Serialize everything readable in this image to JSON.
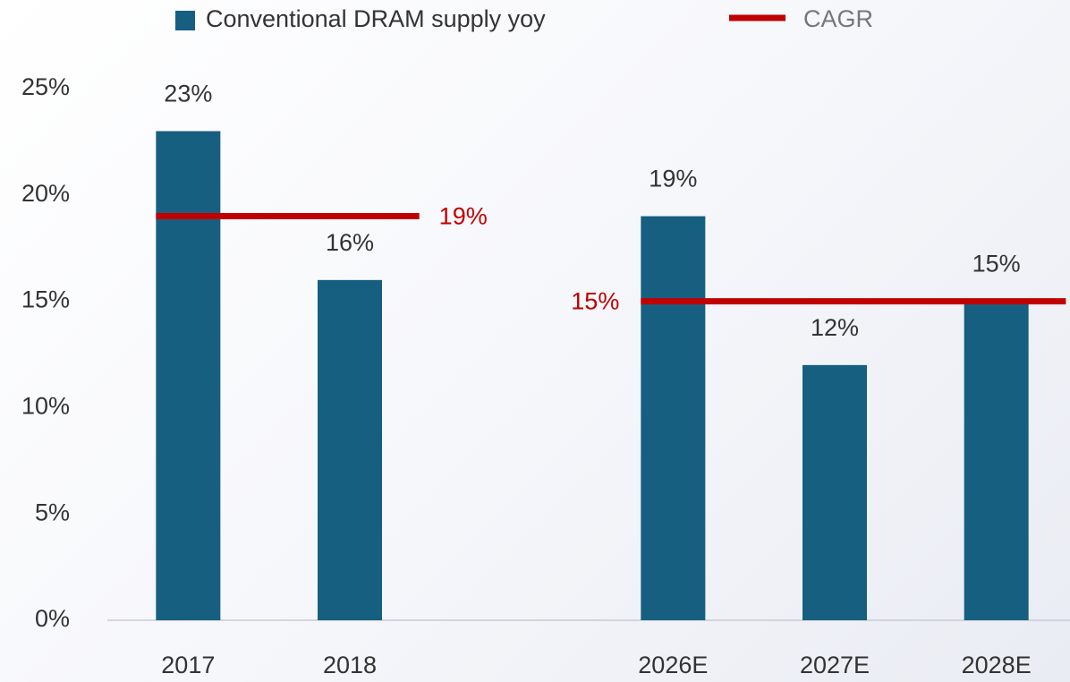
{
  "chart_data": {
    "type": "bar",
    "categories": [
      "2017",
      "2018",
      null,
      "2026E",
      "2027E",
      "2028E"
    ],
    "series": [
      {
        "name": "Conventional DRAM supply yoy",
        "type": "bar",
        "color": "#165f80",
        "values": [
          23,
          16,
          null,
          19,
          12,
          15
        ],
        "value_labels": [
          "23%",
          "16%",
          null,
          "19%",
          "12%",
          "15%"
        ]
      },
      {
        "name": "CAGR",
        "type": "line",
        "color": "#c00000",
        "values": [
          19,
          19,
          null,
          15,
          15,
          15
        ],
        "value_labels": [
          "19%",
          null,
          null,
          "15%",
          null,
          null
        ]
      }
    ],
    "ylim": [
      0,
      25
    ],
    "yticks": [
      {
        "value": 0,
        "label": "0%"
      },
      {
        "value": 5,
        "label": "5%"
      },
      {
        "value": 10,
        "label": "10%"
      },
      {
        "value": 15,
        "label": "15%"
      },
      {
        "value": 20,
        "label": "20%"
      },
      {
        "value": 25,
        "label": "25%"
      }
    ],
    "legend": "top"
  }
}
